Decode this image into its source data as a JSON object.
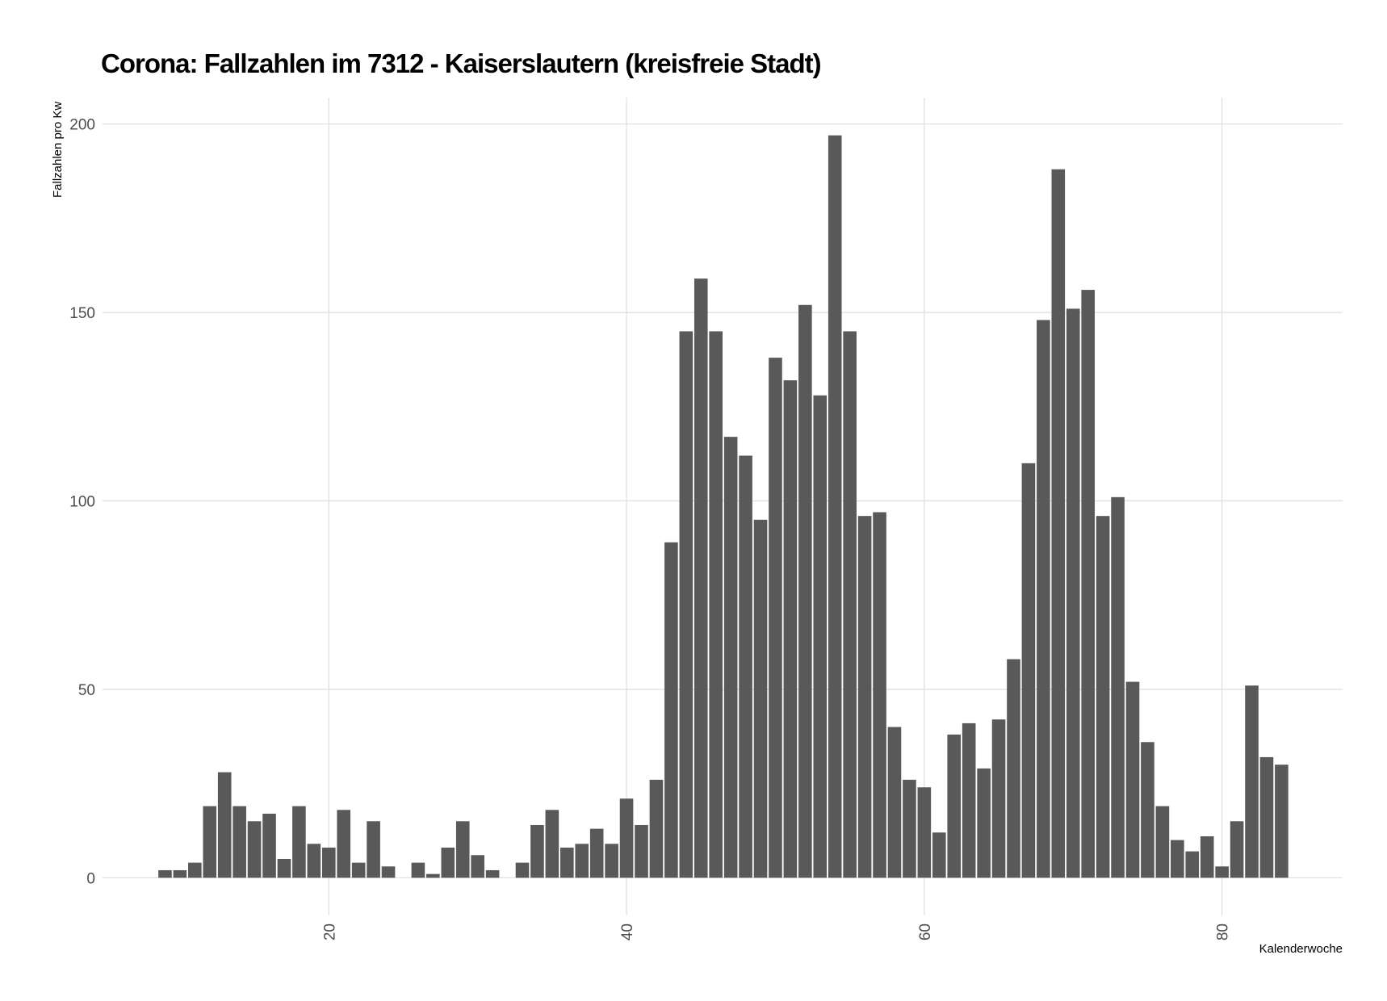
{
  "chart_data": {
    "type": "bar",
    "title": "Corona: Fallzahlen im 7312 - Kaiserslautern (kreisfreie Stadt)",
    "x_label": "Kalenderwoche",
    "y_label": "Fallzahlen pro Kw",
    "x": [
      9,
      10,
      11,
      12,
      13,
      14,
      15,
      16,
      17,
      18,
      19,
      20,
      21,
      22,
      23,
      24,
      25,
      26,
      27,
      28,
      29,
      30,
      31,
      32,
      33,
      34,
      35,
      36,
      37,
      38,
      39,
      40,
      41,
      42,
      43,
      44,
      45,
      46,
      47,
      48,
      49,
      50,
      51,
      52,
      53,
      54,
      55,
      56,
      57,
      58,
      59,
      60,
      61,
      62,
      63,
      64,
      65,
      66,
      67,
      68,
      69,
      70,
      71,
      72,
      73,
      74,
      75,
      76,
      77,
      78,
      79,
      80,
      81,
      82,
      83,
      84
    ],
    "values": [
      2,
      2,
      4,
      19,
      28,
      19,
      15,
      17,
      5,
      19,
      9,
      8,
      18,
      4,
      15,
      3,
      0,
      4,
      1,
      8,
      15,
      6,
      2,
      0,
      4,
      14,
      18,
      8,
      9,
      13,
      9,
      21,
      14,
      26,
      89,
      145,
      159,
      145,
      117,
      112,
      95,
      138,
      132,
      152,
      128,
      197,
      145,
      96,
      97,
      40,
      26,
      24,
      12,
      38,
      41,
      29,
      42,
      58,
      110,
      148,
      188,
      151,
      156,
      96,
      101,
      52,
      36,
      19,
      10,
      7,
      11,
      3,
      15,
      51,
      32,
      30
    ],
    "color": "#595959",
    "xlim": [
      4.8,
      88.1
    ],
    "xticks": [
      20,
      40,
      60,
      80
    ],
    "ylim": [
      -10,
      207
    ],
    "yticks": [
      0,
      50,
      100,
      150,
      200
    ],
    "grid": true
  }
}
